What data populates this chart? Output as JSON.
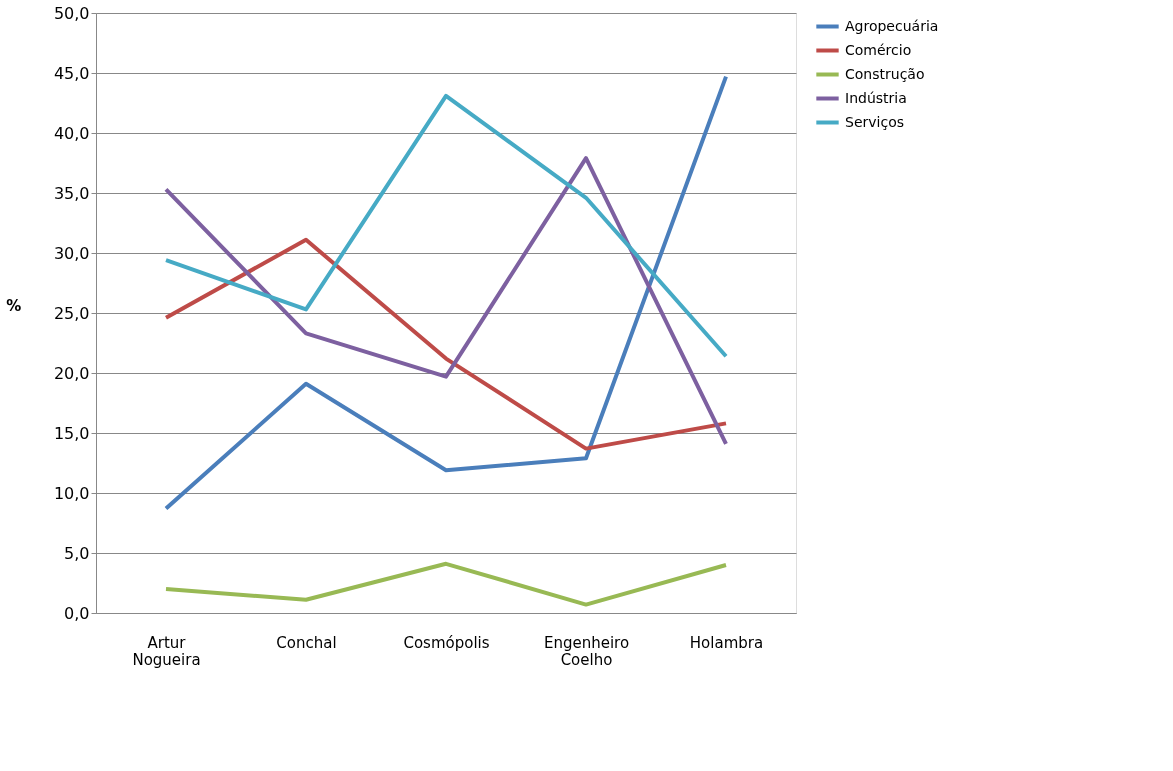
{
  "chart_data": {
    "type": "line",
    "ylabel": "%",
    "categories": [
      "Artur Nogueira",
      "Conchal",
      "Cosmópolis",
      "Engenheiro Coelho",
      "Holambra"
    ],
    "series": [
      {
        "name": "Agropecuária",
        "color": "#4a7ebb",
        "values": [
          8.7,
          19.1,
          11.9,
          12.9,
          44.7
        ]
      },
      {
        "name": "Comércio",
        "color": "#be4b48",
        "values": [
          24.6,
          31.1,
          21.2,
          13.7,
          15.8
        ]
      },
      {
        "name": "Construção",
        "color": "#98b954",
        "values": [
          2.0,
          1.1,
          4.1,
          0.7,
          4.0
        ]
      },
      {
        "name": "Indústria",
        "color": "#7d60a0",
        "values": [
          35.3,
          23.3,
          19.7,
          37.9,
          14.1
        ]
      },
      {
        "name": "Serviços",
        "color": "#46aac5",
        "values": [
          29.4,
          25.3,
          43.1,
          34.6,
          21.4
        ]
      }
    ],
    "ylim": [
      0,
      50
    ],
    "yticks": [
      {
        "value": 0,
        "label": "0,0"
      },
      {
        "value": 5,
        "label": "5,0"
      },
      {
        "value": 10,
        "label": "10,0"
      },
      {
        "value": 15,
        "label": "15,0"
      },
      {
        "value": 20,
        "label": "20,0"
      },
      {
        "value": 25,
        "label": "25,0"
      },
      {
        "value": 30,
        "label": "30,0"
      },
      {
        "value": 35,
        "label": "35,0"
      },
      {
        "value": 40,
        "label": "40,0"
      },
      {
        "value": 45,
        "label": "45,0"
      },
      {
        "value": 50,
        "label": "50,0"
      }
    ],
    "grid": "y",
    "legend": "right",
    "marker": "none",
    "line_style": "solid"
  }
}
